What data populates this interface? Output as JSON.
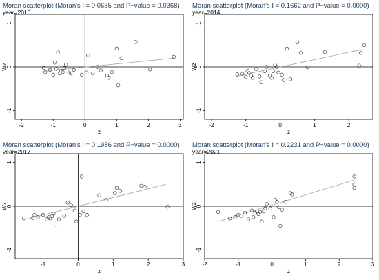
{
  "colors": {
    "frame": "#000000",
    "points": "#3a3a3a",
    "fit_line": "#a9a9a9",
    "title": "#1f3f5f",
    "background": "#ffffff"
  },
  "chart_data": [
    {
      "type": "scatter",
      "title": "Moran scatterplot (Moran's I = 0.0685 and P−value = 0.0368)",
      "subtitle": "year=2010",
      "xlabel": "z",
      "ylabel": "Wz",
      "xlim": [
        -2.2,
        3.1
      ],
      "ylim": [
        -1.2,
        1.2
      ],
      "xticks": [
        -2,
        -1,
        0,
        1,
        2,
        3
      ],
      "yticks": [
        -1,
        0,
        1
      ],
      "grid": false,
      "reference_lines": {
        "x": 0,
        "y": 0
      },
      "fit_line": {
        "x": [
          -1.3,
          2.8
        ],
        "y": [
          -0.1,
          0.2
        ]
      },
      "points": [
        [
          -1.3,
          -0.02
        ],
        [
          -1.25,
          -0.12
        ],
        [
          -1.1,
          -0.07
        ],
        [
          -1.0,
          -0.18
        ],
        [
          -0.95,
          0.1
        ],
        [
          -0.9,
          -0.05
        ],
        [
          -0.85,
          0.33
        ],
        [
          -0.8,
          -0.15
        ],
        [
          -0.75,
          -0.09
        ],
        [
          -0.7,
          -0.12
        ],
        [
          -0.65,
          -0.02
        ],
        [
          -0.6,
          0.05
        ],
        [
          -0.5,
          -0.13
        ],
        [
          -0.45,
          -0.15
        ],
        [
          -0.35,
          -0.07
        ],
        [
          -0.1,
          -0.18
        ],
        [
          0.05,
          -0.13
        ],
        [
          0.1,
          0.26
        ],
        [
          0.25,
          -0.15
        ],
        [
          0.4,
          0.0
        ],
        [
          0.5,
          -0.08
        ],
        [
          0.7,
          -0.2
        ],
        [
          0.75,
          -0.25
        ],
        [
          0.85,
          -0.12
        ],
        [
          1.0,
          0.42
        ],
        [
          1.05,
          -0.42
        ],
        [
          1.15,
          0.2
        ],
        [
          1.6,
          0.57
        ],
        [
          2.05,
          -0.06
        ],
        [
          2.8,
          0.23
        ]
      ]
    },
    {
      "type": "scatter",
      "title": "Moran scatterplot (Moran's I = 0.1662 and P−value = 0.0000)",
      "subtitle": "year=2014",
      "xlabel": "z",
      "ylabel": "Wz",
      "xlim": [
        -2.2,
        2.7
      ],
      "ylim": [
        -1.2,
        1.2
      ],
      "xticks": [
        -2,
        -1,
        0,
        1,
        2
      ],
      "yticks": [
        -1,
        0,
        1
      ],
      "grid": false,
      "reference_lines": {
        "x": 0,
        "y": 0
      },
      "fit_line": {
        "x": [
          -1.3,
          2.4
        ],
        "y": [
          -0.22,
          0.4
        ]
      },
      "points": [
        [
          -1.25,
          -0.17
        ],
        [
          -1.1,
          -0.16
        ],
        [
          -1.0,
          -0.23
        ],
        [
          -0.95,
          -0.09
        ],
        [
          -0.9,
          -0.14
        ],
        [
          -0.85,
          -0.2
        ],
        [
          -0.8,
          -0.25
        ],
        [
          -0.7,
          -0.05
        ],
        [
          -0.6,
          -0.22
        ],
        [
          -0.55,
          -0.35
        ],
        [
          -0.45,
          -0.1
        ],
        [
          -0.4,
          0.0
        ],
        [
          -0.3,
          -0.2
        ],
        [
          -0.25,
          -0.25
        ],
        [
          -0.2,
          -0.1
        ],
        [
          -0.15,
          0.05
        ],
        [
          -0.1,
          0.0
        ],
        [
          -0.05,
          -0.13
        ],
        [
          0.05,
          -0.18
        ],
        [
          0.1,
          -0.3
        ],
        [
          0.2,
          0.42
        ],
        [
          0.3,
          -0.28
        ],
        [
          0.5,
          0.56
        ],
        [
          0.6,
          0.32
        ],
        [
          0.8,
          -0.01
        ],
        [
          1.3,
          0.34
        ],
        [
          2.3,
          0.03
        ],
        [
          2.35,
          0.32
        ],
        [
          2.45,
          0.5
        ]
      ]
    },
    {
      "type": "scatter",
      "title": "Moran scatterplot (Moran's I = 0.1986 and P−value = 0.0000)",
      "subtitle": "year=2017",
      "xlabel": "z",
      "ylabel": "Wz",
      "xlim": [
        -1.8,
        3.0
      ],
      "ylim": [
        -1.2,
        1.2
      ],
      "xticks": [
        -1,
        0,
        1,
        2,
        3
      ],
      "yticks": [
        -1,
        0,
        1
      ],
      "grid": false,
      "reference_lines": {
        "x": 0,
        "y": 0
      },
      "fit_line": {
        "x": [
          -1.5,
          2.5
        ],
        "y": [
          -0.3,
          0.5
        ]
      },
      "points": [
        [
          -1.55,
          -0.28
        ],
        [
          -1.3,
          -0.27
        ],
        [
          -1.25,
          -0.2
        ],
        [
          -1.15,
          -0.25
        ],
        [
          -1.0,
          -0.2
        ],
        [
          -0.9,
          -0.3
        ],
        [
          -0.85,
          -0.25
        ],
        [
          -0.8,
          -0.28
        ],
        [
          -0.75,
          -0.23
        ],
        [
          -0.7,
          -0.17
        ],
        [
          -0.65,
          -0.42
        ],
        [
          -0.55,
          -0.3
        ],
        [
          -0.4,
          -0.22
        ],
        [
          -0.3,
          0.08
        ],
        [
          -0.2,
          0.02
        ],
        [
          -0.1,
          -0.1
        ],
        [
          -0.05,
          -0.35
        ],
        [
          0.05,
          -0.2
        ],
        [
          0.1,
          0.68
        ],
        [
          0.15,
          -0.12
        ],
        [
          0.25,
          -0.2
        ],
        [
          0.6,
          0.25
        ],
        [
          0.8,
          0.15
        ],
        [
          1.05,
          0.3
        ],
        [
          1.1,
          0.42
        ],
        [
          1.2,
          0.35
        ],
        [
          1.8,
          0.47
        ],
        [
          1.9,
          0.45
        ],
        [
          2.55,
          -0.01
        ]
      ]
    },
    {
      "type": "scatter",
      "title": "Moran scatterplot (Moran's I = 0.2231 and P−value = 0.0000)",
      "subtitle": "year=2021",
      "xlabel": "z",
      "ylabel": "Wz",
      "xlim": [
        -2.0,
        3.0
      ],
      "ylim": [
        -1.2,
        1.2
      ],
      "xticks": [
        -2,
        -1,
        0,
        1,
        2,
        3
      ],
      "yticks": [
        -1,
        0,
        1
      ],
      "grid": false,
      "reference_lines": {
        "x": 0,
        "y": 0
      },
      "fit_line": {
        "x": [
          -1.6,
          2.45
        ],
        "y": [
          -0.35,
          0.6
        ]
      },
      "points": [
        [
          -1.6,
          -0.13
        ],
        [
          -1.25,
          -0.28
        ],
        [
          -1.1,
          -0.25
        ],
        [
          -1.0,
          -0.2
        ],
        [
          -0.9,
          -0.22
        ],
        [
          -0.8,
          -0.15
        ],
        [
          -0.7,
          -0.3
        ],
        [
          -0.6,
          -0.1
        ],
        [
          -0.55,
          -0.25
        ],
        [
          -0.5,
          -0.15
        ],
        [
          -0.45,
          -0.12
        ],
        [
          -0.4,
          -0.18
        ],
        [
          -0.35,
          -0.13
        ],
        [
          -0.3,
          -0.35
        ],
        [
          -0.25,
          -0.12
        ],
        [
          -0.2,
          -0.05
        ],
        [
          -0.15,
          0.05
        ],
        [
          -0.05,
          -0.05
        ],
        [
          0.05,
          -0.25
        ],
        [
          0.1,
          0.15
        ],
        [
          0.15,
          0.1
        ],
        [
          0.2,
          -0.02
        ],
        [
          0.25,
          -0.45
        ],
        [
          0.3,
          -0.08
        ],
        [
          0.4,
          0.1
        ],
        [
          0.55,
          0.3
        ],
        [
          0.6,
          0.27
        ],
        [
          2.45,
          0.42
        ],
        [
          2.45,
          0.5
        ],
        [
          2.45,
          0.68
        ]
      ]
    }
  ]
}
